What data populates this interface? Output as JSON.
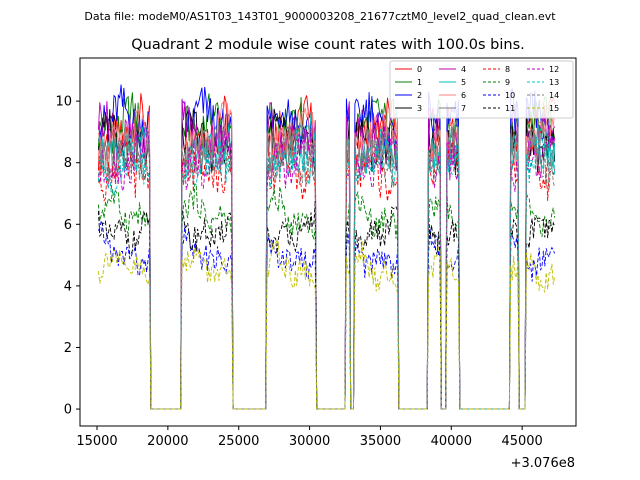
{
  "header": {
    "data_file": "Data file: modeM0/AS1T03_143T01_9000003208_21677cztM0_level2_quad_clean.evt"
  },
  "chart_data": {
    "type": "line",
    "title": "Quadrant 2 module wise count rates with 100.0s bins.",
    "xlabel": "",
    "ylabel": "",
    "x_offset_label": "+3.076e8",
    "xlim": [
      13800,
      48800
    ],
    "ylim": [
      -0.55,
      11.4
    ],
    "x_ticks": [
      15000,
      20000,
      25000,
      30000,
      35000,
      40000,
      45000
    ],
    "x_tick_labels": [
      "15000",
      "20000",
      "25000",
      "30000",
      "35000",
      "40000",
      "45000"
    ],
    "y_ticks": [
      0,
      2,
      4,
      6,
      8,
      10
    ],
    "y_tick_labels": [
      "0",
      "2",
      "4",
      "6",
      "8",
      "10"
    ],
    "grid": false,
    "legend_position": "top-right",
    "on_intervals": [
      [
        15100,
        18700
      ],
      [
        21000,
        24500
      ],
      [
        27000,
        30400
      ],
      [
        32600,
        32800
      ],
      [
        33200,
        36200
      ],
      [
        38400,
        39200
      ],
      [
        39700,
        40500
      ],
      [
        44200,
        44700
      ],
      [
        45300,
        47300
      ]
    ],
    "x_range": [
      15100,
      47300
    ],
    "bin_width": 100,
    "series": [
      {
        "name": "0",
        "color": "#ff0000",
        "dash": "solid",
        "level": 9.0
      },
      {
        "name": "1",
        "color": "#008000",
        "dash": "solid",
        "level": 9.1
      },
      {
        "name": "2",
        "color": "#0000ff",
        "dash": "solid",
        "level": 9.3
      },
      {
        "name": "3",
        "color": "#000000",
        "dash": "solid",
        "level": 8.7
      },
      {
        "name": "4",
        "color": "#bf00bf",
        "dash": "solid",
        "level": 9.0
      },
      {
        "name": "5",
        "color": "#00bfbf",
        "dash": "solid",
        "level": 8.5
      },
      {
        "name": "6",
        "color": "#ff7f7f",
        "dash": "solid",
        "level": 8.8
      },
      {
        "name": "7",
        "color": "#7f7f7f",
        "dash": "solid",
        "level": 8.3
      },
      {
        "name": "8",
        "color": "#ff0000",
        "dash": "dashed",
        "level": 7.6
      },
      {
        "name": "9",
        "color": "#008000",
        "dash": "dashed",
        "level": 6.3
      },
      {
        "name": "10",
        "color": "#0000ff",
        "dash": "dashed",
        "level": 5.1
      },
      {
        "name": "11",
        "color": "#000000",
        "dash": "dashed",
        "level": 5.9
      },
      {
        "name": "12",
        "color": "#bf00bf",
        "dash": "dashed",
        "level": 8.1
      },
      {
        "name": "13",
        "color": "#00bfbf",
        "dash": "dashed",
        "level": 7.9
      },
      {
        "name": "14",
        "color": "#7f7f7f",
        "dash": "dashed",
        "level": 8.0
      },
      {
        "name": "15",
        "color": "#bfbf00",
        "dash": "dashed",
        "level": 4.5
      }
    ]
  }
}
